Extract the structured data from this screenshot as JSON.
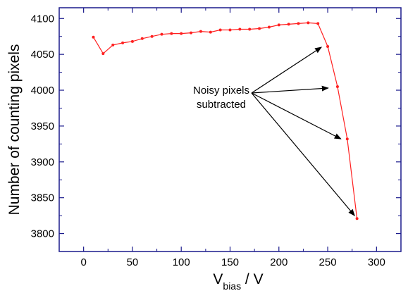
{
  "chart_data": {
    "type": "line",
    "title": "",
    "xlabel": {
      "main": "V",
      "sub": "bias",
      "suffix": " / V"
    },
    "ylabel": "Number of counting pixels",
    "xlim": [
      -25,
      325
    ],
    "ylim": [
      3775,
      4115
    ],
    "x_ticks": [
      0,
      50,
      100,
      150,
      200,
      250,
      300
    ],
    "y_ticks": [
      3800,
      3850,
      3900,
      3950,
      4000,
      4050,
      4100
    ],
    "grid": false,
    "legend": "none",
    "colors": {
      "series": "#ff2020",
      "axes": "#1a1a8c",
      "annotation": "#000000"
    },
    "series": [
      {
        "x": [
          10,
          20,
          30,
          40,
          50,
          60,
          70,
          80,
          90,
          100,
          110,
          120,
          130,
          140,
          150,
          160,
          170,
          180,
          190,
          200,
          210,
          220,
          230,
          240,
          250,
          260,
          270,
          280
        ],
        "values": [
          4074,
          4051,
          4063,
          4066,
          4068,
          4072,
          4075,
          4078,
          4079,
          4079,
          4080,
          4082,
          4081,
          4084,
          4084,
          4085,
          4085,
          4086,
          4088,
          4091,
          4092,
          4093,
          4094,
          4093,
          4061,
          4005,
          3932,
          3821
        ]
      }
    ],
    "annotations": [
      {
        "text_lines": [
          "Noisy pixels",
          "subtracted"
        ],
        "arrow_targets": [
          [
            245,
            4060
          ],
          [
            252,
            4003
          ],
          [
            265,
            3932
          ],
          [
            279,
            3825
          ]
        ]
      }
    ]
  }
}
